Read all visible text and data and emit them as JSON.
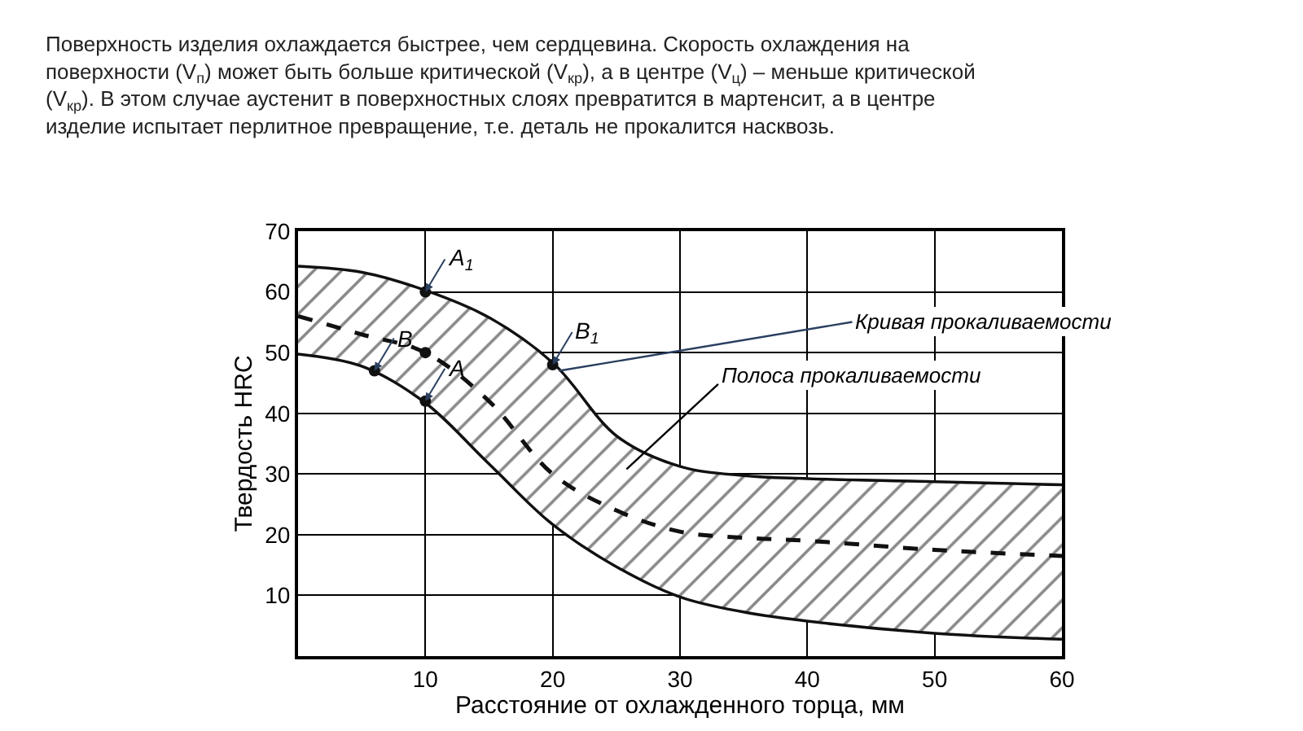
{
  "chart_data": {
    "type": "line",
    "title": "Поверхность изделия охлаждается быстрее, чем сердцевина. Скорость охлаждения на поверхности (V$_{п}$) может быть больше критической (V$_{кр}$), а в центре (V$_{ц}$) – меньше критической (V$_{кр}$). В этом случае аустенит в поверхностных слоях превратится в мартенсит, а в центре изделие испытает перлитное превращение, т.е. деталь не прокалится насквозь.",
    "xlabel": "Расстояние от охлажденного торца, мм",
    "ylabel": "Твердость HRC",
    "x": [
      0,
      5,
      10,
      15,
      20,
      25,
      30,
      35,
      40,
      50,
      60
    ],
    "series": [
      {
        "color": "#111111",
        "values": [
          64,
          63,
          60,
          55.5,
          48,
          36,
          31,
          29.5,
          29,
          28.5,
          28
        ]
      },
      {
        "color": "#111111",
        "values": [
          50,
          48,
          42,
          32,
          22,
          15,
          10,
          7.5,
          6,
          4,
          3
        ]
      },
      {
        "color": "#111111",
        "line_style": "dashed",
        "marker": "none",
        "values": [
          56,
          53,
          50,
          42,
          30,
          24,
          20.5,
          19.5,
          19,
          17.5,
          16.5
        ],
        "lower": [
          50,
          48,
          42,
          32,
          22,
          15,
          10,
          7.5,
          6,
          4,
          3
        ],
        "upper": [
          64,
          63,
          60,
          55.5,
          48,
          36,
          31,
          29.5,
          29,
          28.5,
          28
        ]
      },
      {
        "type": "scatter",
        "color": "#111111",
        "marker": "circle",
        "x": [
          10,
          20,
          10,
          6,
          10
        ],
        "values": [
          60,
          48,
          42,
          47,
          50
        ]
      }
    ],
    "xlim": [
      0,
      60
    ],
    "xticks": [
      {
        "value": 0,
        "label": null
      },
      10,
      20,
      30,
      40,
      50,
      60
    ],
    "ylim": [
      0,
      70
    ],
    "yticks": [
      {
        "value": 0,
        "label": null
      },
      10,
      20,
      30,
      40,
      50,
      60,
      70
    ],
    "grid": true,
    "annotations": [
      {
        "text": "A$_{1}$",
        "x": 10,
        "y": 60
      },
      {
        "text": "B$_{1}$",
        "x": 20,
        "y": 48
      },
      {
        "text": "A",
        "x": 10,
        "y": 42
      },
      {
        "text": "B",
        "x": 6,
        "y": 47
      },
      {
        "text": "Кривая прокаливаемости",
        "x": 20.5,
        "y": 47
      },
      "Полоса прокаливаемости"
    ]
  }
}
